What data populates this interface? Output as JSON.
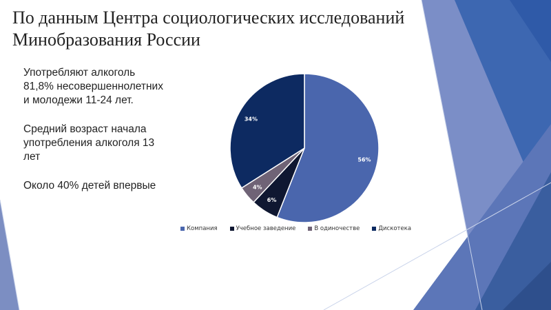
{
  "slide": {
    "title": "По данным Центра социологических исследований Минобразования России",
    "bullet_marker": "",
    "bullets": [
      "Употребляют алкоголь\n81,8%  несовершеннолетних\nи молодежи 11-24 лет.",
      "Средний возраст начала\nупотребления алкоголя 13\nлет",
      "Около 40% детей впервые"
    ]
  },
  "chart_data": {
    "type": "pie",
    "title": "",
    "categories": [
      "Компания",
      "Учебное заведение",
      "В одиночестве",
      "Дискотека"
    ],
    "values": [
      56,
      6,
      4,
      34
    ],
    "labels": [
      "56%",
      "6%",
      "4%",
      "34%"
    ],
    "colors": [
      "#4a66ad",
      "#0f1731",
      "#6f6376",
      "#0d2a61"
    ],
    "label_colors": [
      "#ffffff",
      "#ffffff",
      "#ffffff",
      "#ffffff"
    ],
    "legend_position": "bottom"
  },
  "theme": {
    "decor_colors": [
      "#5f7ac0",
      "#3d61a8",
      "#7089c2",
      "#9eb0d9",
      "#2c4a8a"
    ]
  }
}
